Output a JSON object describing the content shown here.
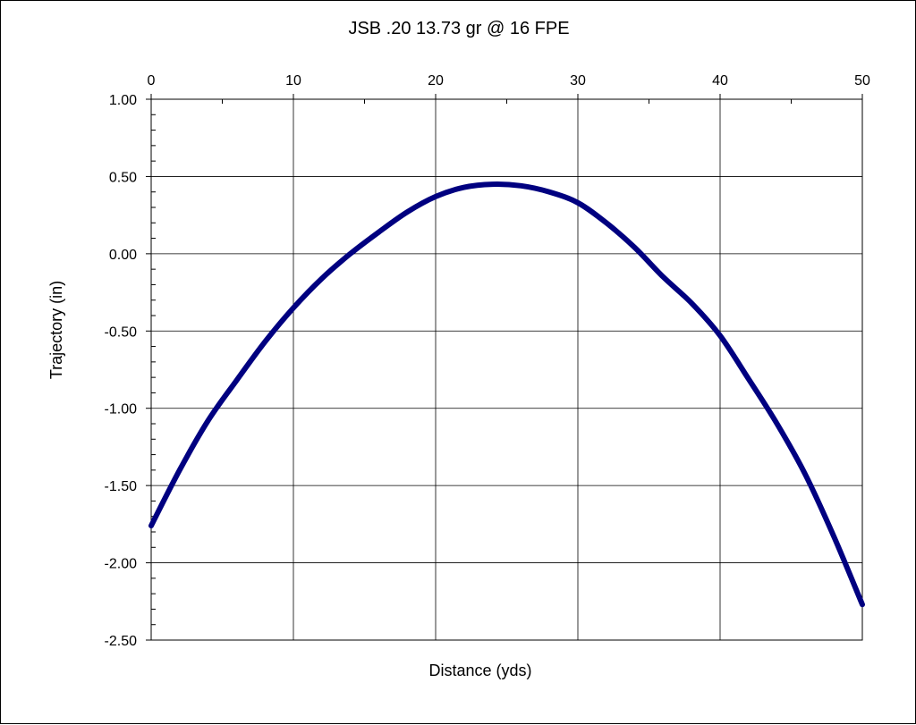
{
  "chart_data": {
    "type": "line",
    "title": "JSB .20 13.73 gr @ 16 FPE",
    "xlabel": "Distance (yds)",
    "ylabel": "Trajectory (in)",
    "xlim": [
      0,
      50
    ],
    "ylim": [
      -2.5,
      1.0
    ],
    "x_ticks": [
      0,
      10,
      20,
      30,
      40,
      50
    ],
    "x_tick_labels": [
      "0",
      "10",
      "20",
      "30",
      "40",
      "50"
    ],
    "y_ticks": [
      1.0,
      0.5,
      0.0,
      -0.5,
      -1.0,
      -1.5,
      -2.0,
      -2.5
    ],
    "y_tick_labels": [
      "1.00",
      "0.50",
      "0.00",
      "-0.50",
      "-1.00",
      "-1.50",
      "-2.00",
      "-2.50"
    ],
    "x_axis_position": "top",
    "grid": true,
    "line_color": "#000080",
    "series": [
      {
        "name": "Trajectory",
        "x": [
          0,
          2,
          4,
          6,
          8,
          10,
          12,
          14,
          16,
          18,
          20,
          22,
          24,
          26,
          28,
          30,
          32,
          34,
          36,
          38,
          40,
          42,
          44,
          46,
          48,
          50
        ],
        "values": [
          -1.76,
          -1.4,
          -1.08,
          -0.82,
          -0.57,
          -0.35,
          -0.16,
          0.0,
          0.14,
          0.27,
          0.37,
          0.43,
          0.45,
          0.44,
          0.4,
          0.33,
          0.2,
          0.04,
          -0.15,
          -0.32,
          -0.53,
          -0.81,
          -1.1,
          -1.43,
          -1.83,
          -2.27
        ]
      }
    ]
  }
}
